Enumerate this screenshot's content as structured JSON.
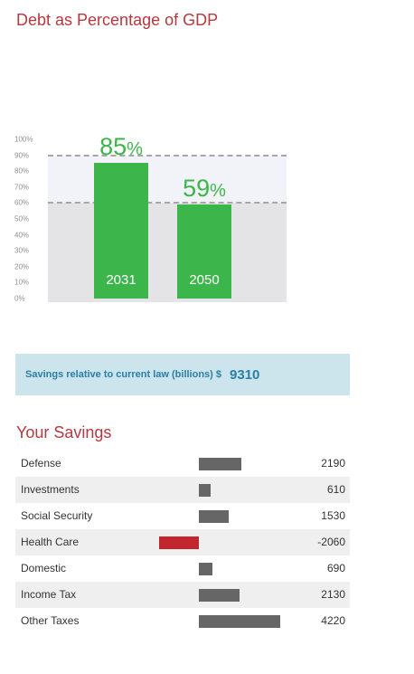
{
  "title": "Debt as Percentage of GDP",
  "chart_data": {
    "type": "bar",
    "categories": [
      "2031",
      "2050"
    ],
    "values": [
      85,
      59
    ],
    "value_suffix": "%",
    "ylim": [
      0,
      100
    ],
    "yticks": [
      "100%",
      "90%",
      "80%",
      "70%",
      "60%",
      "50%",
      "40%",
      "30%",
      "20%",
      "10%",
      "0%"
    ],
    "reference_lines": [
      90,
      60
    ],
    "bar_color": "#3cb54a"
  },
  "savings": {
    "label": "Savings relative to current law (billions) $",
    "value": "9310"
  },
  "your_savings": {
    "title": "Your Savings",
    "rows": [
      {
        "label": "Defense",
        "value": "2190",
        "amount": 2190
      },
      {
        "label": "Investments",
        "value": "610",
        "amount": 610
      },
      {
        "label": "Social Security",
        "value": "1530",
        "amount": 1530
      },
      {
        "label": "Health Care",
        "value": "-2060",
        "amount": -2060
      },
      {
        "label": "Domestic",
        "value": "690",
        "amount": 690
      },
      {
        "label": "Income Tax",
        "value": "2130",
        "amount": 2130
      },
      {
        "label": "Other Taxes",
        "value": "4220",
        "amount": 4220
      }
    ],
    "positive_color": "#666666",
    "negative_color": "#c1272d"
  }
}
